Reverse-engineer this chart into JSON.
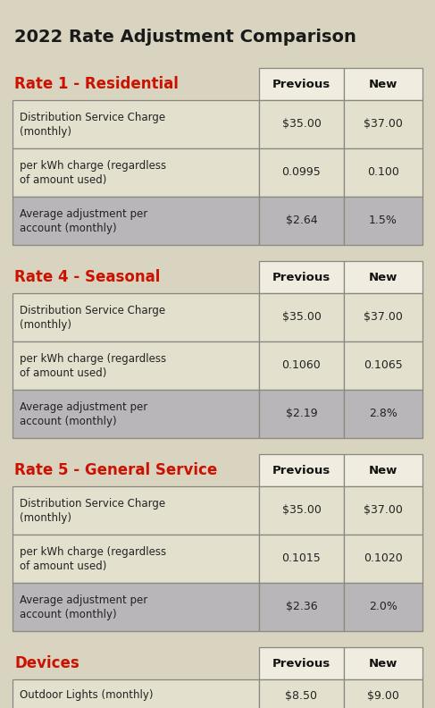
{
  "title": "2022 Rate Adjustment Comparison",
  "background_color": "#d8d4c0",
  "cell_bg_normal": "#e4e0ce",
  "cell_bg_shaded": "#b8b6b8",
  "header_cell_bg": "#f0ede0",
  "border_color": "#888880",
  "title_color": "#1a1a1a",
  "rate_label_color": "#cc1100",
  "header_text_color": "#111111",
  "cell_text_color": "#222222",
  "sections": [
    {
      "rate_label": "Rate 1 - Residential",
      "rows": [
        {
          "label": "Distribution Service Charge\n(monthly)",
          "previous": "$35.00",
          "new": "$37.00",
          "shaded": false
        },
        {
          "label": "per kWh charge (regardless\nof amount used)",
          "previous": "0.0995",
          "new": "0.100",
          "shaded": false
        },
        {
          "label": "Average adjustment per\naccount (monthly)",
          "previous": "$2.64",
          "new": "1.5%",
          "shaded": true
        }
      ]
    },
    {
      "rate_label": "Rate 4 - Seasonal",
      "rows": [
        {
          "label": "Distribution Service Charge\n(monthly)",
          "previous": "$35.00",
          "new": "$37.00",
          "shaded": false
        },
        {
          "label": "per kWh charge (regardless\nof amount used)",
          "previous": "0.1060",
          "new": "0.1065",
          "shaded": false
        },
        {
          "label": "Average adjustment per\naccount (monthly)",
          "previous": "$2.19",
          "new": "2.8%",
          "shaded": true
        }
      ]
    },
    {
      "rate_label": "Rate 5 - General Service",
      "rows": [
        {
          "label": "Distribution Service Charge\n(monthly)",
          "previous": "$35.00",
          "new": "$37.00",
          "shaded": false
        },
        {
          "label": "per kWh charge (regardless\nof amount used)",
          "previous": "0.1015",
          "new": "0.1020",
          "shaded": false
        },
        {
          "label": "Average adjustment per\naccount (monthly)",
          "previous": "$2.36",
          "new": "2.0%",
          "shaded": true
        }
      ]
    },
    {
      "rate_label": "Devices",
      "rows": [
        {
          "label": "Outdoor Lights (monthly)",
          "previous": "$8.50",
          "new": "$9.00",
          "shaded": false
        }
      ]
    }
  ]
}
